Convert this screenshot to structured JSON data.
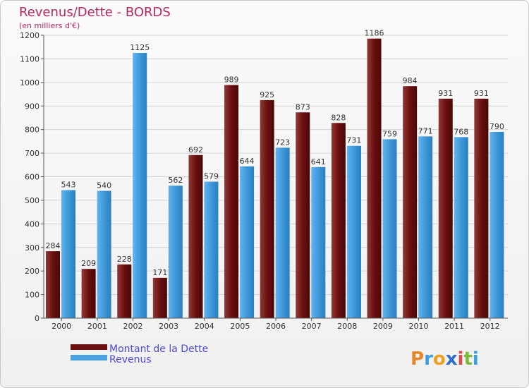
{
  "chart_data": {
    "type": "bar",
    "title": "Revenus/Dette - BORDS",
    "subtitle": "(en milliers d'€)",
    "xlabel": "",
    "ylabel": "",
    "ylim": [
      0,
      1200
    ],
    "yticks": [
      0,
      100,
      200,
      300,
      400,
      500,
      600,
      700,
      800,
      900,
      1000,
      1100,
      1200
    ],
    "grid": true,
    "categories": [
      "2000",
      "2001",
      "2002",
      "2003",
      "2004",
      "2005",
      "2006",
      "2007",
      "2008",
      "2009",
      "2010",
      "2011",
      "2012"
    ],
    "series": [
      {
        "name": "Montant de la Dette",
        "color": "#7a1818",
        "values": [
          284,
          209,
          228,
          171,
          692,
          989,
          925,
          873,
          828,
          1186,
          984,
          931,
          931
        ]
      },
      {
        "name": "Revenus",
        "color": "#4aa3e0",
        "values": [
          543,
          540,
          1125,
          562,
          579,
          644,
          723,
          641,
          731,
          759,
          771,
          768,
          790
        ]
      }
    ],
    "legend_position": "bottom-left"
  },
  "branding": {
    "logo_text": "Proxiti"
  }
}
